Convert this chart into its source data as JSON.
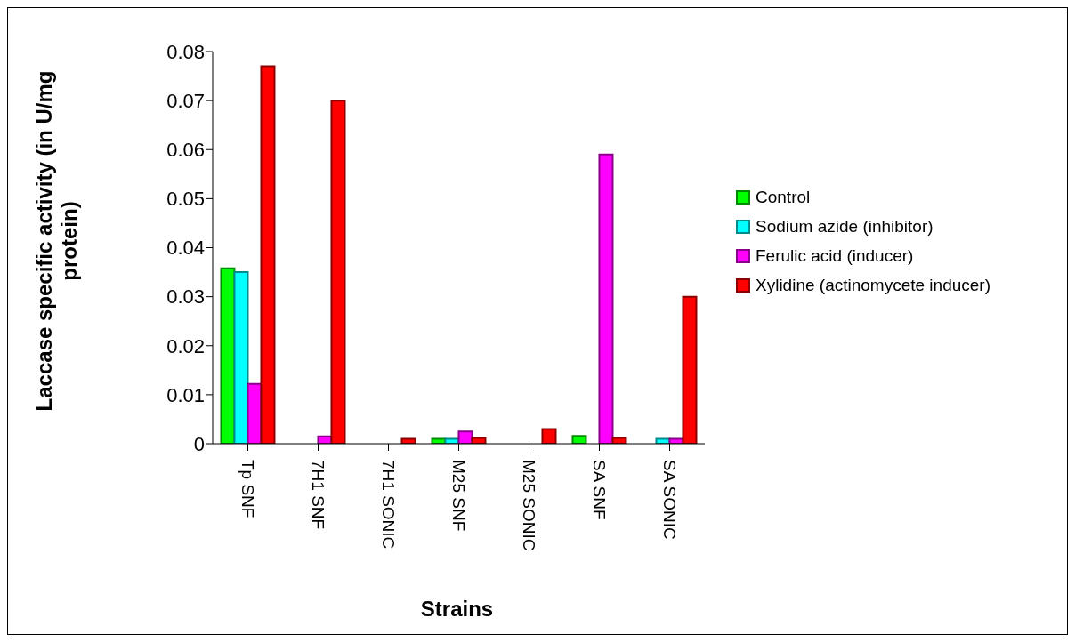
{
  "chart_data": {
    "type": "bar",
    "xlabel": "Strains",
    "ylabel": "Laccase specific activity (in U/mg protein)",
    "categories": [
      "Tp SNF",
      "7H1 SNF",
      "7H1 SONIC",
      "M25 SNF",
      "M25 SONIC",
      "SA SNF",
      "SA SONIC"
    ],
    "series": [
      {
        "name": "Control",
        "color": "#00ff00",
        "values": [
          0.0358,
          0,
          0,
          0.001,
          0,
          0.0016,
          0
        ]
      },
      {
        "name": "Sodium azide (inhibitor)",
        "color": "#00ffff",
        "values": [
          0.035,
          0,
          0,
          0.001,
          0,
          0,
          0.001
        ]
      },
      {
        "name": "Ferulic acid (inducer)",
        "color": "#ff00ff",
        "values": [
          0.0122,
          0.0015,
          0,
          0.0025,
          0,
          0.059,
          0.001
        ]
      },
      {
        "name": "Xylidine (actinomycete inducer)",
        "color": "#ff0000",
        "values": [
          0.077,
          0.07,
          0.001,
          0.0012,
          0.003,
          0.0012,
          0.03
        ]
      }
    ],
    "ylim": [
      0,
      0.08
    ],
    "yticks": [
      0,
      0.01,
      0.02,
      0.03,
      0.04,
      0.05,
      0.06,
      0.07,
      0.08
    ],
    "grid": false,
    "legend": "right"
  }
}
